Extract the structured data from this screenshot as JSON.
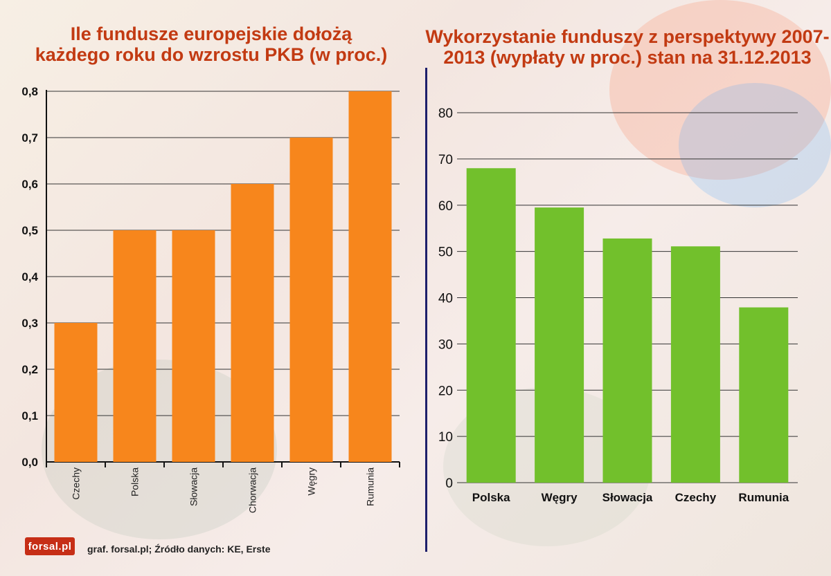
{
  "brand": {
    "logo_text": "forsal.pl",
    "logo_color": "#c62e16"
  },
  "footer": {
    "credit": "graf. forsal.pl; Źródło danych: KE, Erste"
  },
  "colors": {
    "orange_bars": "#f7861c",
    "green_bars": "#72c02c",
    "title": "#c23a12",
    "divider": "#1d1f6b"
  },
  "chart_data": [
    {
      "type": "bar",
      "title": "Ile fundusze europejskie dołożą każdego roku do wzrostu PKB (w proc.)",
      "categories": [
        "Czechy",
        "Polska",
        "Słowacja",
        "Chorwacja",
        "Węgry",
        "Rumunia"
      ],
      "values": [
        0.3,
        0.5,
        0.5,
        0.6,
        0.7,
        0.8
      ],
      "ylim": [
        0,
        0.8
      ],
      "yticks": [
        "0,0",
        "0,1",
        "0,2",
        "0,3",
        "0,4",
        "0,5",
        "0,6",
        "0,7",
        "0,8"
      ],
      "grid": true,
      "xlabel_rotation": "vertical"
    },
    {
      "type": "bar",
      "title": "Wykorzystanie funduszy z perspektywy 2007-2013 (wypłaty w proc.) stan na 31.12.2013",
      "categories": [
        "Polska",
        "Węgry",
        "Słowacja",
        "Czechy",
        "Rumunia"
      ],
      "values": [
        68,
        59.5,
        52.8,
        51.1,
        37.9
      ],
      "ylim": [
        0,
        80
      ],
      "yticks": [
        "0",
        "10",
        "20",
        "30",
        "40",
        "50",
        "60",
        "70",
        "80"
      ],
      "grid": true
    }
  ]
}
